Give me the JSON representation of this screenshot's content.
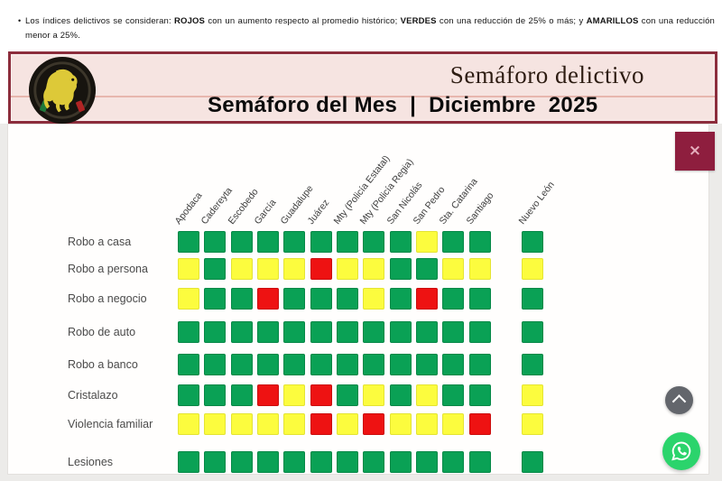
{
  "note": {
    "bullet": "•",
    "parts": [
      {
        "text": "Los índices delictivos se consideran: ",
        "bold": false
      },
      {
        "text": "ROJOS",
        "bold": true
      },
      {
        "text": " con un aumento respecto al promedio histórico; ",
        "bold": false
      },
      {
        "text": "VERDES",
        "bold": true
      },
      {
        "text": " con una reducción de 25% o más; y ",
        "bold": false
      },
      {
        "text": "AMARILLOS",
        "bold": true
      },
      {
        "text": " con una reducción menor a 25%.",
        "bold": false
      }
    ]
  },
  "banner": {
    "brand_title": "Semáforo delictivo",
    "month_title": "Semáforo del Mes  |  Diciembre  2025",
    "logo_name": "semaforo-delictivo-lion-logo",
    "background_color": "#f6e4e1",
    "border_color": "#8c2d3c"
  },
  "modal": {
    "close_label": "×",
    "close_color": "#8e1e3e"
  },
  "chart_data": {
    "type": "heatmap",
    "title": "Semáforo del Mes | Diciembre 2025",
    "legend_note": "ROJOS: aumento respecto al promedio histórico; VERDES: reducción de 25% o más; AMARILLOS: reducción menor a 25%",
    "columns": [
      "Apodaca",
      "Cadereyta",
      "Escobedo",
      "García",
      "Guadalupe",
      "Juárez",
      "Mty (Policía Estatal)",
      "Mty (Policía Regia)",
      "San Nicolás",
      "San Pedro",
      "Sta. Catarina",
      "Santiago",
      "Nuevo León"
    ],
    "summary_column": "Nuevo León",
    "rows": [
      "Robo a casa",
      "Robo a persona",
      "Robo a negocio",
      "Robo de auto",
      "Robo a banco",
      "Cristalazo",
      "Violencia familiar",
      "Lesiones"
    ],
    "cells": [
      [
        "green",
        "green",
        "green",
        "green",
        "green",
        "green",
        "green",
        "green",
        "green",
        "yellow",
        "green",
        "green",
        "green"
      ],
      [
        "yellow",
        "green",
        "yellow",
        "yellow",
        "yellow",
        "red",
        "yellow",
        "yellow",
        "green",
        "green",
        "yellow",
        "yellow",
        "yellow"
      ],
      [
        "yellow",
        "green",
        "green",
        "red",
        "green",
        "green",
        "green",
        "yellow",
        "green",
        "red",
        "green",
        "green",
        "green"
      ],
      [
        "green",
        "green",
        "green",
        "green",
        "green",
        "green",
        "green",
        "green",
        "green",
        "green",
        "green",
        "green",
        "green"
      ],
      [
        "green",
        "green",
        "green",
        "green",
        "green",
        "green",
        "green",
        "green",
        "green",
        "green",
        "green",
        "green",
        "green"
      ],
      [
        "green",
        "green",
        "green",
        "red",
        "yellow",
        "red",
        "green",
        "yellow",
        "green",
        "yellow",
        "green",
        "green",
        "yellow"
      ],
      [
        "yellow",
        "yellow",
        "yellow",
        "yellow",
        "yellow",
        "red",
        "yellow",
        "red",
        "yellow",
        "yellow",
        "yellow",
        "red",
        "yellow"
      ],
      [
        "green",
        "green",
        "green",
        "green",
        "green",
        "green",
        "green",
        "green",
        "green",
        "green",
        "green",
        "green",
        "green"
      ]
    ],
    "colors": {
      "green": "#0aa155",
      "yellow": "#fcfc3e",
      "red": "#ee1212"
    }
  },
  "floating": {
    "scroll_top_label": "scroll to top",
    "whatsapp_label": "WhatsApp"
  }
}
